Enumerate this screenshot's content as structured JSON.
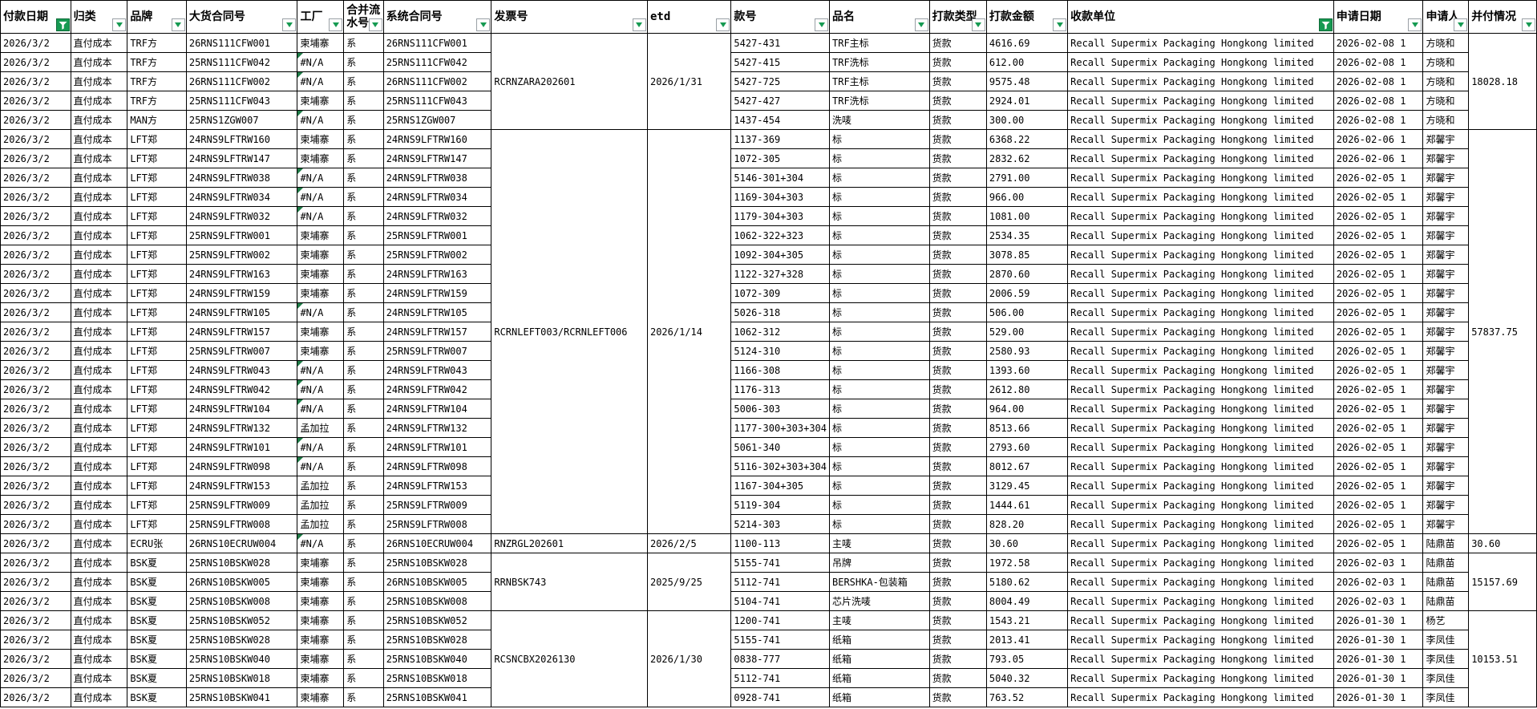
{
  "sheet": {
    "columns": [
      {
        "id": "payment-date",
        "label": "付款日期",
        "filter": "active"
      },
      {
        "id": "category",
        "label": "归类",
        "filter": "dropdown"
      },
      {
        "id": "brand",
        "label": "品牌",
        "filter": "dropdown"
      },
      {
        "id": "contract-no",
        "label": "大货合同号",
        "filter": "dropdown"
      },
      {
        "id": "factory",
        "label": "工厂",
        "filter": "dropdown"
      },
      {
        "id": "merge-flow-no",
        "label": "合并流水号",
        "filter": "dropdown"
      },
      {
        "id": "system-contract-no",
        "label": "系统合同号",
        "filter": "dropdown"
      },
      {
        "id": "invoice-no",
        "label": "发票号",
        "filter": "dropdown"
      },
      {
        "id": "etd",
        "label": "etd",
        "filter": "dropdown"
      },
      {
        "id": "style-no",
        "label": "款号",
        "filter": "dropdown"
      },
      {
        "id": "product-name",
        "label": "品名",
        "filter": "dropdown"
      },
      {
        "id": "payment-type",
        "label": "打款类型",
        "filter": "dropdown"
      },
      {
        "id": "payment-amount",
        "label": "打款金额",
        "filter": "dropdown"
      },
      {
        "id": "payee",
        "label": "收款单位",
        "filter": "active"
      },
      {
        "id": "apply-date",
        "label": "申请日期",
        "filter": "dropdown"
      },
      {
        "id": "applicant",
        "label": "申请人",
        "filter": "dropdown"
      },
      {
        "id": "combined-status",
        "label": "并付情况",
        "filter": "dropdown"
      }
    ],
    "groups": [
      {
        "invoice": "RCRNZARA202601",
        "etd": "2026/1/31",
        "combined": "18028.18",
        "start": 0,
        "span": 5
      },
      {
        "invoice": "RCRNLEFT003/RCRNLEFT006",
        "etd": "2026/1/14",
        "combined": "57837.75",
        "start": 5,
        "span": 21
      },
      {
        "invoice": "RNZRGL202601",
        "etd": "2026/2/5",
        "combined": "30.60",
        "start": 26,
        "span": 1
      },
      {
        "invoice": "RRNBSK743",
        "etd": "2025/9/25",
        "combined": "15157.69",
        "start": 27,
        "span": 3
      },
      {
        "invoice": "RCSNCBX2026130",
        "etd": "2026/1/30",
        "combined": "10153.51",
        "start": 30,
        "span": 5
      }
    ],
    "rows": [
      {
        "date": "2026/3/2",
        "category": "直付成本",
        "brand": "TRF方",
        "contract": "26RNS111CFW001",
        "factory": "柬埔寨",
        "flow": "系",
        "system": "26RNS111CFW001",
        "style": "5427-431",
        "product": "TRF主标",
        "pay_type": "货款",
        "amount": "4616.69",
        "payee": "Recall Supermix Packaging Hongkong limited",
        "apply_date": "2026-02-08 1",
        "applicant": "方晓和"
      },
      {
        "date": "2026/3/2",
        "category": "直付成本",
        "brand": "TRF方",
        "contract": "25RNS111CFW042",
        "factory": "#N/A",
        "flow": "系",
        "system": "25RNS111CFW042",
        "style": "5427-415",
        "product": "TRF洗标",
        "pay_type": "货款",
        "amount": "612.00",
        "payee": "Recall Supermix Packaging Hongkong limited",
        "apply_date": "2026-02-08 1",
        "applicant": "方晓和"
      },
      {
        "date": "2026/3/2",
        "category": "直付成本",
        "brand": "TRF方",
        "contract": "26RNS111CFW002",
        "factory": "#N/A",
        "flow": "系",
        "system": "26RNS111CFW002",
        "style": "5427-725",
        "product": "TRF主标",
        "pay_type": "货款",
        "amount": "9575.48",
        "payee": "Recall Supermix Packaging Hongkong limited",
        "apply_date": "2026-02-08 1",
        "applicant": "方晓和"
      },
      {
        "date": "2026/3/2",
        "category": "直付成本",
        "brand": "TRF方",
        "contract": "25RNS111CFW043",
        "factory": "柬埔寨",
        "flow": "系",
        "system": "25RNS111CFW043",
        "style": "5427-427",
        "product": "TRF洗标",
        "pay_type": "货款",
        "amount": "2924.01",
        "payee": "Recall Supermix Packaging Hongkong limited",
        "apply_date": "2026-02-08 1",
        "applicant": "方晓和"
      },
      {
        "date": "2026/3/2",
        "category": "直付成本",
        "brand": "MAN方",
        "contract": "25RNS1ZGW007",
        "factory": "#N/A",
        "flow": "系",
        "system": "25RNS1ZGW007",
        "style": "1437-454",
        "product": "洗唛",
        "pay_type": "货款",
        "amount": "300.00",
        "payee": "Recall Supermix Packaging Hongkong limited",
        "apply_date": "2026-02-08 1",
        "applicant": "方晓和"
      },
      {
        "date": "2026/3/2",
        "category": "直付成本",
        "brand": "LFT郑",
        "contract": "24RNS9LFTRW160",
        "factory": "柬埔寨",
        "flow": "系",
        "system": "24RNS9LFTRW160",
        "style": "1137-369",
        "product": "标",
        "pay_type": "货款",
        "amount": "6368.22",
        "payee": "Recall Supermix Packaging Hongkong limited",
        "apply_date": "2026-02-06 1",
        "applicant": "郑馨宇"
      },
      {
        "date": "2026/3/2",
        "category": "直付成本",
        "brand": "LFT郑",
        "contract": "24RNS9LFTRW147",
        "factory": "柬埔寨",
        "flow": "系",
        "system": "24RNS9LFTRW147",
        "style": "1072-305",
        "product": "标",
        "pay_type": "货款",
        "amount": "2832.62",
        "payee": "Recall Supermix Packaging Hongkong limited",
        "apply_date": "2026-02-06 1",
        "applicant": "郑馨宇"
      },
      {
        "date": "2026/3/2",
        "category": "直付成本",
        "brand": "LFT郑",
        "contract": "24RNS9LFTRW038",
        "factory": "#N/A",
        "flow": "系",
        "system": "24RNS9LFTRW038",
        "style": "5146-301+304",
        "product": "标",
        "pay_type": "货款",
        "amount": "2791.00",
        "payee": "Recall Supermix Packaging Hongkong limited",
        "apply_date": "2026-02-05 1",
        "applicant": "郑馨宇"
      },
      {
        "date": "2026/3/2",
        "category": "直付成本",
        "brand": "LFT郑",
        "contract": "24RNS9LFTRW034",
        "factory": "#N/A",
        "flow": "系",
        "system": "24RNS9LFTRW034",
        "style": "1169-304+303",
        "product": "标",
        "pay_type": "货款",
        "amount": "966.00",
        "payee": "Recall Supermix Packaging Hongkong limited",
        "apply_date": "2026-02-05 1",
        "applicant": "郑馨宇"
      },
      {
        "date": "2026/3/2",
        "category": "直付成本",
        "brand": "LFT郑",
        "contract": "24RNS9LFTRW032",
        "factory": "#N/A",
        "flow": "系",
        "system": "24RNS9LFTRW032",
        "style": "1179-304+303",
        "product": "标",
        "pay_type": "货款",
        "amount": "1081.00",
        "payee": "Recall Supermix Packaging Hongkong limited",
        "apply_date": "2026-02-05 1",
        "applicant": "郑馨宇"
      },
      {
        "date": "2026/3/2",
        "category": "直付成本",
        "brand": "LFT郑",
        "contract": "25RNS9LFTRW001",
        "factory": "柬埔寨",
        "flow": "系",
        "system": "25RNS9LFTRW001",
        "style": "1062-322+323",
        "product": "标",
        "pay_type": "货款",
        "amount": "2534.35",
        "payee": "Recall Supermix Packaging Hongkong limited",
        "apply_date": "2026-02-05 1",
        "applicant": "郑馨宇"
      },
      {
        "date": "2026/3/2",
        "category": "直付成本",
        "brand": "LFT郑",
        "contract": "25RNS9LFTRW002",
        "factory": "柬埔寨",
        "flow": "系",
        "system": "25RNS9LFTRW002",
        "style": "1092-304+305",
        "product": "标",
        "pay_type": "货款",
        "amount": "3078.85",
        "payee": "Recall Supermix Packaging Hongkong limited",
        "apply_date": "2026-02-05 1",
        "applicant": "郑馨宇"
      },
      {
        "date": "2026/3/2",
        "category": "直付成本",
        "brand": "LFT郑",
        "contract": "24RNS9LFTRW163",
        "factory": "柬埔寨",
        "flow": "系",
        "system": "24RNS9LFTRW163",
        "style": "1122-327+328",
        "product": "标",
        "pay_type": "货款",
        "amount": "2870.60",
        "payee": "Recall Supermix Packaging Hongkong limited",
        "apply_date": "2026-02-05 1",
        "applicant": "郑馨宇"
      },
      {
        "date": "2026/3/2",
        "category": "直付成本",
        "brand": "LFT郑",
        "contract": "24RNS9LFTRW159",
        "factory": "柬埔寨",
        "flow": "系",
        "system": "24RNS9LFTRW159",
        "style": "1072-309",
        "product": "标",
        "pay_type": "货款",
        "amount": "2006.59",
        "payee": "Recall Supermix Packaging Hongkong limited",
        "apply_date": "2026-02-05 1",
        "applicant": "郑馨宇"
      },
      {
        "date": "2026/3/2",
        "category": "直付成本",
        "brand": "LFT郑",
        "contract": "24RNS9LFTRW105",
        "factory": "#N/A",
        "flow": "系",
        "system": "24RNS9LFTRW105",
        "style": "5026-318",
        "product": "标",
        "pay_type": "货款",
        "amount": "506.00",
        "payee": "Recall Supermix Packaging Hongkong limited",
        "apply_date": "2026-02-05 1",
        "applicant": "郑馨宇"
      },
      {
        "date": "2026/3/2",
        "category": "直付成本",
        "brand": "LFT郑",
        "contract": "24RNS9LFTRW157",
        "factory": "柬埔寨",
        "flow": "系",
        "system": "24RNS9LFTRW157",
        "style": "1062-312",
        "product": "标",
        "pay_type": "货款",
        "amount": "529.00",
        "payee": "Recall Supermix Packaging Hongkong limited",
        "apply_date": "2026-02-05 1",
        "applicant": "郑馨宇"
      },
      {
        "date": "2026/3/2",
        "category": "直付成本",
        "brand": "LFT郑",
        "contract": "25RNS9LFTRW007",
        "factory": "柬埔寨",
        "flow": "系",
        "system": "25RNS9LFTRW007",
        "style": "5124-310",
        "product": "标",
        "pay_type": "货款",
        "amount": "2580.93",
        "payee": "Recall Supermix Packaging Hongkong limited",
        "apply_date": "2026-02-05 1",
        "applicant": "郑馨宇"
      },
      {
        "date": "2026/3/2",
        "category": "直付成本",
        "brand": "LFT郑",
        "contract": "24RNS9LFTRW043",
        "factory": "#N/A",
        "flow": "系",
        "system": "24RNS9LFTRW043",
        "style": "1166-308",
        "product": "标",
        "pay_type": "货款",
        "amount": "1393.60",
        "payee": "Recall Supermix Packaging Hongkong limited",
        "apply_date": "2026-02-05 1",
        "applicant": "郑馨宇"
      },
      {
        "date": "2026/3/2",
        "category": "直付成本",
        "brand": "LFT郑",
        "contract": "24RNS9LFTRW042",
        "factory": "#N/A",
        "flow": "系",
        "system": "24RNS9LFTRW042",
        "style": "1176-313",
        "product": "标",
        "pay_type": "货款",
        "amount": "2612.80",
        "payee": "Recall Supermix Packaging Hongkong limited",
        "apply_date": "2026-02-05 1",
        "applicant": "郑馨宇"
      },
      {
        "date": "2026/3/2",
        "category": "直付成本",
        "brand": "LFT郑",
        "contract": "24RNS9LFTRW104",
        "factory": "#N/A",
        "flow": "系",
        "system": "24RNS9LFTRW104",
        "style": "5006-303",
        "product": "标",
        "pay_type": "货款",
        "amount": "964.00",
        "payee": "Recall Supermix Packaging Hongkong limited",
        "apply_date": "2026-02-05 1",
        "applicant": "郑馨宇"
      },
      {
        "date": "2026/3/2",
        "category": "直付成本",
        "brand": "LFT郑",
        "contract": "24RNS9LFTRW132",
        "factory": "孟加拉",
        "flow": "系",
        "system": "24RNS9LFTRW132",
        "style": "1177-300+303+304",
        "product": "标",
        "pay_type": "货款",
        "amount": "8513.66",
        "payee": "Recall Supermix Packaging Hongkong limited",
        "apply_date": "2026-02-05 1",
        "applicant": "郑馨宇"
      },
      {
        "date": "2026/3/2",
        "category": "直付成本",
        "brand": "LFT郑",
        "contract": "24RNS9LFTRW101",
        "factory": "#N/A",
        "flow": "系",
        "system": "24RNS9LFTRW101",
        "style": "5061-340",
        "product": "标",
        "pay_type": "货款",
        "amount": "2793.60",
        "payee": "Recall Supermix Packaging Hongkong limited",
        "apply_date": "2026-02-05 1",
        "applicant": "郑馨宇"
      },
      {
        "date": "2026/3/2",
        "category": "直付成本",
        "brand": "LFT郑",
        "contract": "24RNS9LFTRW098",
        "factory": "#N/A",
        "flow": "系",
        "system": "24RNS9LFTRW098",
        "style": "5116-302+303+304",
        "product": "标",
        "pay_type": "货款",
        "amount": "8012.67",
        "payee": "Recall Supermix Packaging Hongkong limited",
        "apply_date": "2026-02-05 1",
        "applicant": "郑馨宇"
      },
      {
        "date": "2026/3/2",
        "category": "直付成本",
        "brand": "LFT郑",
        "contract": "24RNS9LFTRW153",
        "factory": "孟加拉",
        "flow": "系",
        "system": "24RNS9LFTRW153",
        "style": "1167-304+305",
        "product": "标",
        "pay_type": "货款",
        "amount": "3129.45",
        "payee": "Recall Supermix Packaging Hongkong limited",
        "apply_date": "2026-02-05 1",
        "applicant": "郑馨宇"
      },
      {
        "date": "2026/3/2",
        "category": "直付成本",
        "brand": "LFT郑",
        "contract": "25RNS9LFTRW009",
        "factory": "孟加拉",
        "flow": "系",
        "system": "25RNS9LFTRW009",
        "style": "5119-304",
        "product": "标",
        "pay_type": "货款",
        "amount": "1444.61",
        "payee": "Recall Supermix Packaging Hongkong limited",
        "apply_date": "2026-02-05 1",
        "applicant": "郑馨宇"
      },
      {
        "date": "2026/3/2",
        "category": "直付成本",
        "brand": "LFT郑",
        "contract": "25RNS9LFTRW008",
        "factory": "孟加拉",
        "flow": "系",
        "system": "25RNS9LFTRW008",
        "style": "5214-303",
        "product": "标",
        "pay_type": "货款",
        "amount": "828.20",
        "payee": "Recall Supermix Packaging Hongkong limited",
        "apply_date": "2026-02-05 1",
        "applicant": "郑馨宇"
      },
      {
        "date": "2026/3/2",
        "category": "直付成本",
        "brand": "ECRU张",
        "contract": "26RNS10ECRUW004",
        "factory": "#N/A",
        "flow": "系",
        "system": "26RNS10ECRUW004",
        "style": "1100-113",
        "product": "主唛",
        "pay_type": "货款",
        "amount": "30.60",
        "payee": "Recall Supermix Packaging Hongkong limited",
        "apply_date": "2026-02-05 1",
        "applicant": "陆鼎苗"
      },
      {
        "date": "2026/3/2",
        "category": "直付成本",
        "brand": "BSK夏",
        "contract": "25RNS10BSKW028",
        "factory": "柬埔寨",
        "flow": "系",
        "system": "25RNS10BSKW028",
        "style": "5155-741",
        "product": "吊牌",
        "pay_type": "货款",
        "amount": "1972.58",
        "payee": "Recall Supermix Packaging Hongkong limited",
        "apply_date": "2026-02-03 1",
        "applicant": "陆鼎苗"
      },
      {
        "date": "2026/3/2",
        "category": "直付成本",
        "brand": "BSK夏",
        "contract": "26RNS10BSKW005",
        "factory": "柬埔寨",
        "flow": "系",
        "system": "26RNS10BSKW005",
        "style": "5112-741",
        "product": "BERSHKA-包装箱",
        "pay_type": "货款",
        "amount": "5180.62",
        "payee": "Recall Supermix Packaging Hongkong limited",
        "apply_date": "2026-02-03 1",
        "applicant": "陆鼎苗"
      },
      {
        "date": "2026/3/2",
        "category": "直付成本",
        "brand": "BSK夏",
        "contract": "25RNS10BSKW008",
        "factory": "柬埔寨",
        "flow": "系",
        "system": "25RNS10BSKW008",
        "style": "5104-741",
        "product": "芯片洗唛",
        "pay_type": "货款",
        "amount": "8004.49",
        "payee": "Recall Supermix Packaging Hongkong limited",
        "apply_date": "2026-02-03 1",
        "applicant": "陆鼎苗"
      },
      {
        "date": "2026/3/2",
        "category": "直付成本",
        "brand": "BSK夏",
        "contract": "25RNS10BSKW052",
        "factory": "柬埔寨",
        "flow": "系",
        "system": "25RNS10BSKW052",
        "style": "1200-741",
        "product": "主唛",
        "pay_type": "货款",
        "amount": "1543.21",
        "payee": "Recall Supermix Packaging Hongkong limited",
        "apply_date": "2026-01-30 1",
        "applicant": "杨艺"
      },
      {
        "date": "2026/3/2",
        "category": "直付成本",
        "brand": "BSK夏",
        "contract": "25RNS10BSKW028",
        "factory": "柬埔寨",
        "flow": "系",
        "system": "25RNS10BSKW028",
        "style": "5155-741",
        "product": "纸箱",
        "pay_type": "货款",
        "amount": "2013.41",
        "payee": "Recall Supermix Packaging Hongkong limited",
        "apply_date": "2026-01-30 1",
        "applicant": "李凤佳"
      },
      {
        "date": "2026/3/2",
        "category": "直付成本",
        "brand": "BSK夏",
        "contract": "25RNS10BSKW040",
        "factory": "柬埔寨",
        "flow": "系",
        "system": "25RNS10BSKW040",
        "style": "0838-777",
        "product": "纸箱",
        "pay_type": "货款",
        "amount": "793.05",
        "payee": "Recall Supermix Packaging Hongkong limited",
        "apply_date": "2026-01-30 1",
        "applicant": "李凤佳"
      },
      {
        "date": "2026/3/2",
        "category": "直付成本",
        "brand": "BSK夏",
        "contract": "25RNS10BSKW018",
        "factory": "柬埔寨",
        "flow": "系",
        "system": "25RNS10BSKW018",
        "style": "5112-741",
        "product": "纸箱",
        "pay_type": "货款",
        "amount": "5040.32",
        "payee": "Recall Supermix Packaging Hongkong limited",
        "apply_date": "2026-01-30 1",
        "applicant": "李凤佳"
      },
      {
        "date": "2026/3/2",
        "category": "直付成本",
        "brand": "BSK夏",
        "contract": "25RNS10BSKW041",
        "factory": "柬埔寨",
        "flow": "系",
        "system": "25RNS10BSKW041",
        "style": "0928-741",
        "product": "纸箱",
        "pay_type": "货款",
        "amount": "763.52",
        "payee": "Recall Supermix Packaging Hongkong limited",
        "apply_date": "2026-01-30 1",
        "applicant": "李凤佳"
      }
    ]
  }
}
